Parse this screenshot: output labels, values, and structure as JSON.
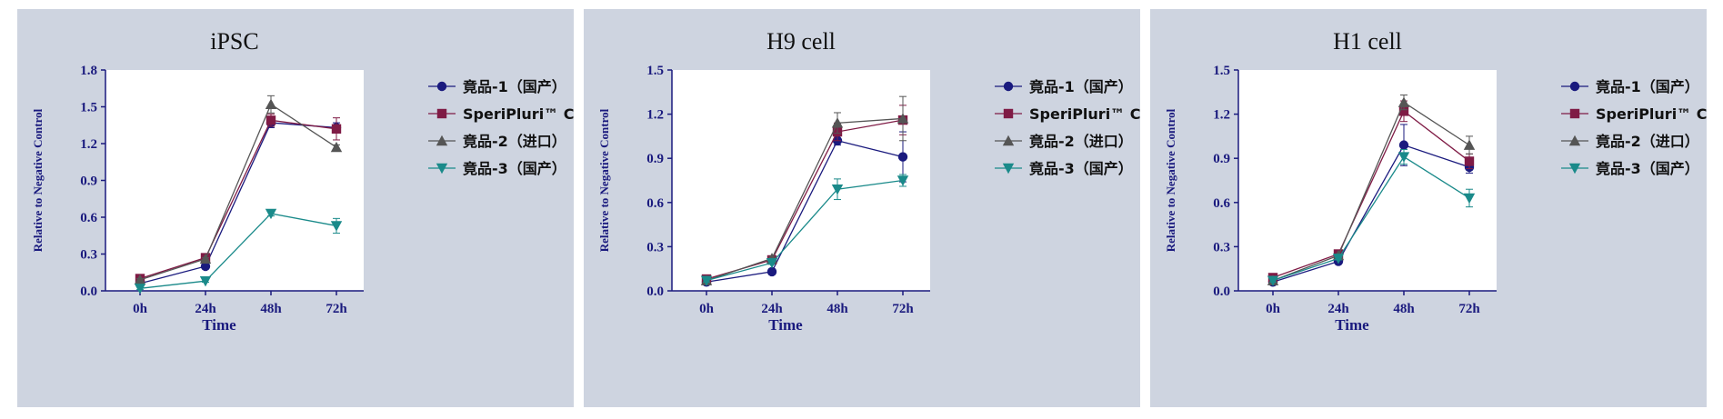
{
  "colors": {
    "panel_bg": "#ced4e0",
    "axis": "#1a1a7e",
    "series": [
      "#1a1a7e",
      "#7f1b45",
      "#555555",
      "#1a8a8a"
    ]
  },
  "series_markers": [
    "circle",
    "square",
    "triangle-up",
    "triangle-down"
  ],
  "chart_data": [
    {
      "type": "line",
      "title": "iPSC",
      "xlabel": "Time",
      "ylabel": "Relative to Negative Control",
      "categories": [
        "0h",
        "24h",
        "48h",
        "72h"
      ],
      "ylim": [
        0,
        1.8
      ],
      "yticks": [
        "0.0",
        "0.3",
        "0.6",
        "0.9",
        "1.2",
        "1.5",
        "1.8"
      ],
      "legend_position": "right",
      "series": [
        {
          "name": "竟品-1（国产）",
          "values": [
            0.06,
            0.2,
            1.37,
            1.33
          ],
          "errors": [
            0.01,
            0.01,
            0.04,
            0.04
          ]
        },
        {
          "name": "SperiPluri™ CD",
          "values": [
            0.1,
            0.27,
            1.39,
            1.32
          ],
          "errors": [
            0.01,
            0.02,
            0.05,
            0.09
          ]
        },
        {
          "name": "竟品-2（进口）",
          "values": [
            0.09,
            0.26,
            1.52,
            1.17
          ],
          "errors": [
            0.01,
            0.01,
            0.07,
            0.02
          ]
        },
        {
          "name": "竟品-3（国产）",
          "values": [
            0.02,
            0.08,
            0.63,
            0.53
          ],
          "errors": [
            0.01,
            0.01,
            0.02,
            0.06
          ]
        }
      ]
    },
    {
      "type": "line",
      "title": "H9 cell",
      "xlabel": "Time",
      "ylabel": "Relative to Negative Control",
      "categories": [
        "0h",
        "24h",
        "48h",
        "72h"
      ],
      "ylim": [
        0,
        1.5
      ],
      "yticks": [
        "0.0",
        "0.3",
        "0.6",
        "0.9",
        "1.2",
        "1.5"
      ],
      "legend_position": "right",
      "series": [
        {
          "name": "竟品-1（国产）",
          "values": [
            0.06,
            0.13,
            1.02,
            0.91
          ],
          "errors": [
            0.01,
            0.01,
            0.03,
            0.17
          ]
        },
        {
          "name": "SperiPluri™ CD",
          "values": [
            0.08,
            0.21,
            1.08,
            1.16
          ],
          "errors": [
            0.01,
            0.01,
            0.06,
            0.1
          ]
        },
        {
          "name": "竟品-2（进口）",
          "values": [
            0.07,
            0.22,
            1.14,
            1.17
          ],
          "errors": [
            0.01,
            0.01,
            0.07,
            0.15
          ]
        },
        {
          "name": "竟品-3（国产）",
          "values": [
            0.07,
            0.19,
            0.69,
            0.75
          ],
          "errors": [
            0.01,
            0.01,
            0.07,
            0.04
          ]
        }
      ]
    },
    {
      "type": "line",
      "title": "H1 cell",
      "xlabel": "Time",
      "ylabel": "Relative to Negative Control",
      "categories": [
        "0h",
        "24h",
        "48h",
        "72h"
      ],
      "ylim": [
        0,
        1.5
      ],
      "yticks": [
        "0.0",
        "0.3",
        "0.6",
        "0.9",
        "1.2",
        "1.5"
      ],
      "legend_position": "right",
      "series": [
        {
          "name": "竟品-1（国产）",
          "values": [
            0.06,
            0.2,
            0.99,
            0.84
          ],
          "errors": [
            0.01,
            0.01,
            0.14,
            0.04
          ]
        },
        {
          "name": "SperiPluri™ CD",
          "values": [
            0.09,
            0.25,
            1.22,
            0.88
          ],
          "errors": [
            0.01,
            0.01,
            0.07,
            0.05
          ]
        },
        {
          "name": "竟品-2（进口）",
          "values": [
            0.07,
            0.24,
            1.28,
            0.99
          ],
          "errors": [
            0.01,
            0.01,
            0.05,
            0.06
          ]
        },
        {
          "name": "竟品-3（国产）",
          "values": [
            0.07,
            0.22,
            0.91,
            0.63
          ],
          "errors": [
            0.01,
            0.01,
            0.05,
            0.06
          ]
        }
      ]
    }
  ]
}
